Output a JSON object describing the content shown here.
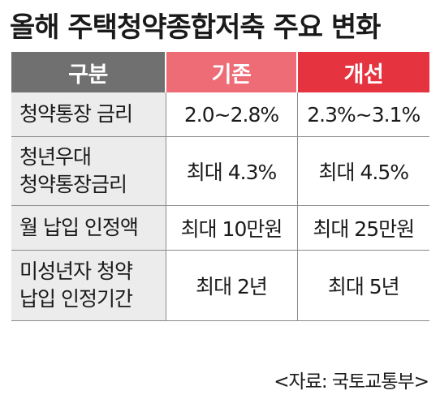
{
  "title": "올해 주택청약종합저축 주요 변화",
  "table": {
    "headers": {
      "category": "구분",
      "before": "기존",
      "after": "개선"
    },
    "rows": [
      {
        "category": [
          "청약통장 금리"
        ],
        "before": "2.0~2.8%",
        "after": "2.3%~3.1%"
      },
      {
        "category": [
          "청년우대",
          "청약통장금리"
        ],
        "before": "최대 4.3%",
        "after": "최대 4.5%"
      },
      {
        "category": [
          "월 납입 인정액"
        ],
        "before": "최대 10만원",
        "after": "최대 25만원"
      },
      {
        "category": [
          "미성년자 청약",
          "납입 인정기간"
        ],
        "before": "최대 2년",
        "after": "최대 5년"
      }
    ]
  },
  "source": "<자료: 국토교통부>",
  "colors": {
    "header_category": "#707070",
    "header_before": "#ee6c76",
    "header_after": "#e53340",
    "category_cell": "#ececec"
  }
}
